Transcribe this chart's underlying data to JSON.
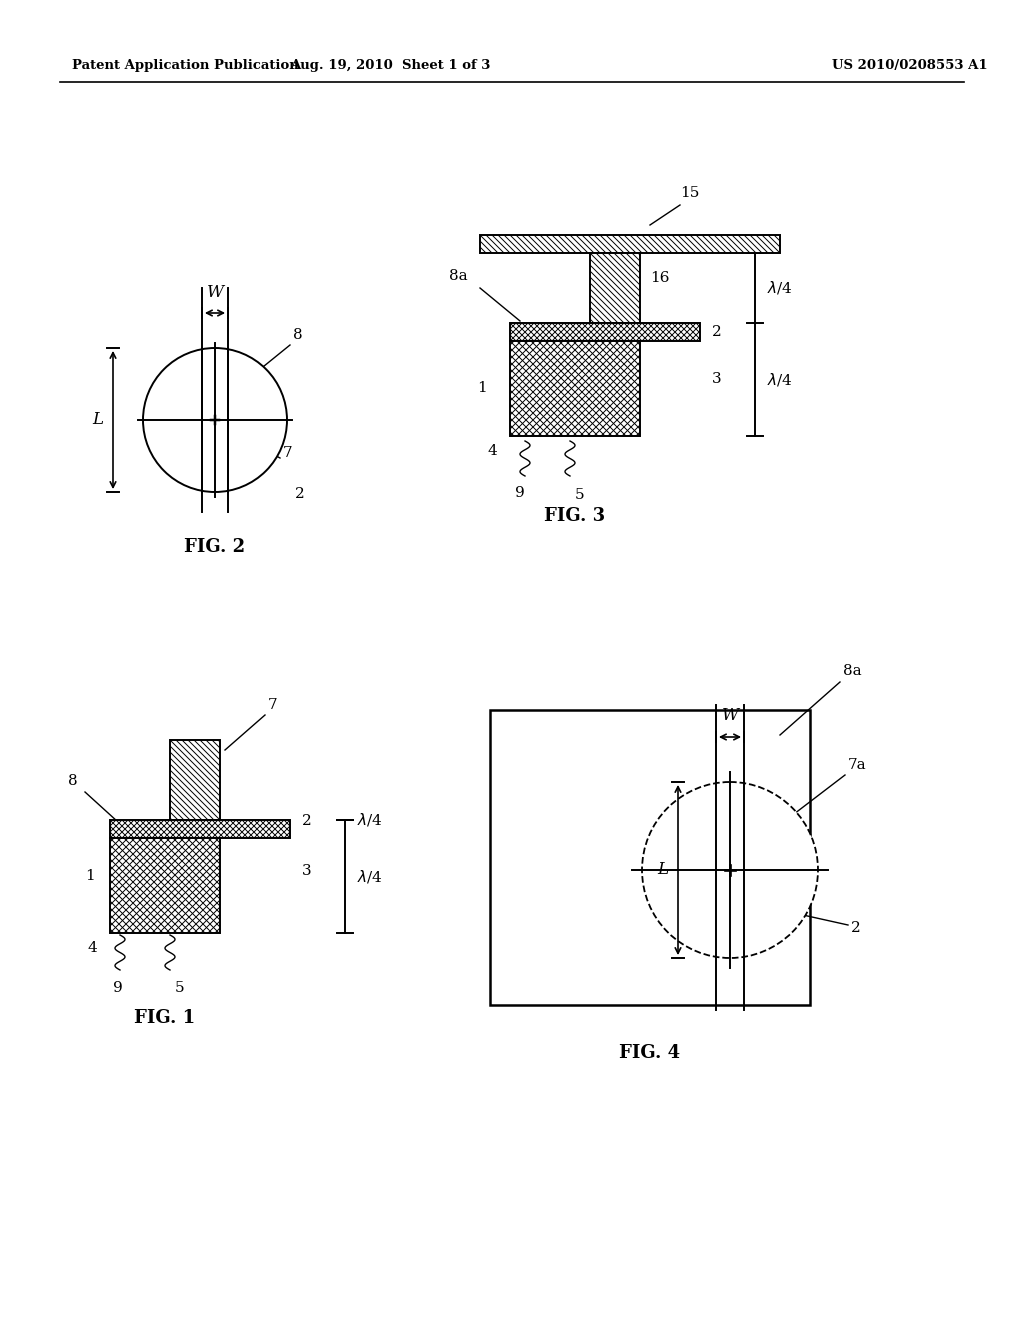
{
  "header_left": "Patent Application Publication",
  "header_mid": "Aug. 19, 2010  Sheet 1 of 3",
  "header_right": "US 2010/0208553 A1",
  "background_color": "#ffffff",
  "line_color": "#000000"
}
